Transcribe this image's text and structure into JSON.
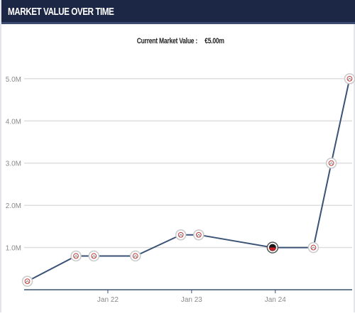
{
  "header": {
    "title": "MARKET VALUE OVER TIME"
  },
  "subtitle": {
    "label": "Current Market Value :",
    "value": "€5.00m"
  },
  "chart_data": {
    "type": "line",
    "title": "",
    "xlabel": "",
    "ylabel": "",
    "x_tick_labels": [
      "Jan 22",
      "Jan 23",
      "Jan 24"
    ],
    "x_ticks": [
      "2022-01-01",
      "2023-01-01",
      "2024-01-01"
    ],
    "xlim": [
      "2021-01-01",
      "2024-12-01"
    ],
    "y_tick_labels": [
      "1.0M",
      "2.0M",
      "3.0M",
      "4.0M",
      "5.0M"
    ],
    "y_ticks": [
      1.0,
      2.0,
      3.0,
      4.0,
      5.0
    ],
    "ylim": [
      0,
      5.25
    ],
    "grid": "horizontal",
    "y_unit": "million €",
    "series": [
      {
        "points": [
          {
            "x": "2021-01-15",
            "y": 0.2,
            "club": "ajax"
          },
          {
            "x": "2021-08-15",
            "y": 0.8,
            "club": "ajax"
          },
          {
            "x": "2021-11-01",
            "y": 0.8,
            "club": "ajax"
          },
          {
            "x": "2022-05-01",
            "y": 0.8,
            "club": "ajax"
          },
          {
            "x": "2022-11-15",
            "y": 1.3,
            "club": "ajax"
          },
          {
            "x": "2023-02-01",
            "y": 1.3,
            "club": "ajax"
          },
          {
            "x": "2023-12-20",
            "y": 1.0,
            "club": "other"
          },
          {
            "x": "2024-06-15",
            "y": 1.0,
            "club": "ajax"
          },
          {
            "x": "2024-09-01",
            "y": 3.0,
            "club": "ajax"
          },
          {
            "x": "2024-11-20",
            "y": 5.0,
            "club": "ajax"
          }
        ]
      }
    ],
    "colors": {
      "line": "#3a5275",
      "grid": "#dcdcdc",
      "axis": "#3a5275",
      "tick_text": "#8a8a8a"
    }
  }
}
